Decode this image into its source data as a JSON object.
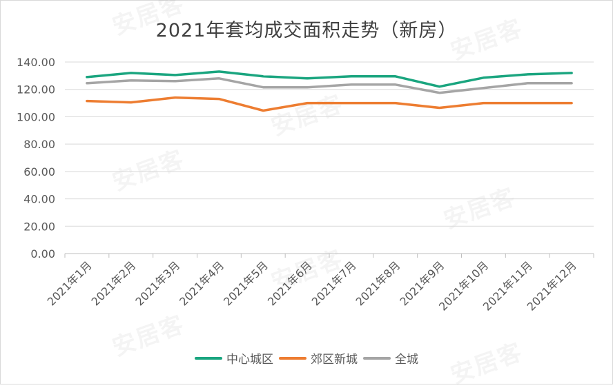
{
  "chart_data": {
    "type": "line",
    "title": "2021年套均成交面积走势（新房）",
    "categories": [
      "2021年1月",
      "2021年2月",
      "2021年3月",
      "2021年4月",
      "2021年5月",
      "2021年6月",
      "2021年7月",
      "2021年8月",
      "2021年9月",
      "2021年10月",
      "2021年11月",
      "2021年12月"
    ],
    "series": [
      {
        "name": "中心城区",
        "color": "#1aa57f",
        "values": [
          129.0,
          132.0,
          130.5,
          133.0,
          129.5,
          128.0,
          129.5,
          129.5,
          122.0,
          128.5,
          131.0,
          132.0
        ]
      },
      {
        "name": "郊区新城",
        "color": "#ed7d31",
        "values": [
          111.5,
          110.5,
          114.0,
          113.0,
          104.5,
          110.0,
          110.0,
          110.0,
          106.5,
          110.0,
          110.0,
          110.0
        ]
      },
      {
        "name": "全城",
        "color": "#a5a5a5",
        "values": [
          124.5,
          126.5,
          126.0,
          128.0,
          121.5,
          121.5,
          123.5,
          123.5,
          117.5,
          121.0,
          124.5,
          124.5
        ]
      }
    ],
    "y_ticks": [
      "0.00",
      "20.00",
      "40.00",
      "60.00",
      "80.00",
      "100.00",
      "120.00",
      "140.00"
    ],
    "ylim": [
      0,
      140
    ],
    "grid": true,
    "legend_position": "bottom",
    "xlabel": "",
    "ylabel": ""
  },
  "watermark_text": "安居客"
}
